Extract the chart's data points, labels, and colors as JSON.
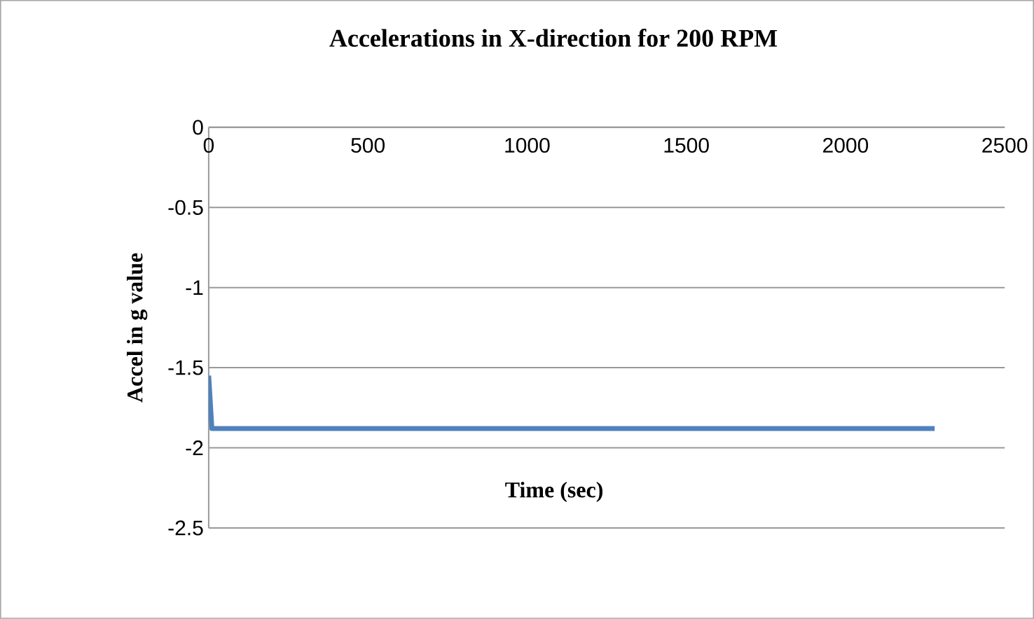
{
  "chart_data": {
    "type": "line",
    "title": "Accelerations in X-direction for 200 RPM",
    "xlabel": "Time (sec)",
    "ylabel": "Accel in g value",
    "series": [
      {
        "color": "#4f81bd",
        "x": [
          0,
          10,
          2280
        ],
        "values": [
          -1.55,
          -1.88,
          -1.88
        ]
      }
    ],
    "xlim": [
      0,
      2500
    ],
    "xticks": [
      0,
      500,
      1000,
      1500,
      2000,
      2500
    ],
    "ylim": [
      -2.5,
      0
    ],
    "yticks": [
      0,
      -0.5,
      -1,
      -1.5,
      -2,
      -2.5
    ],
    "grid": "y"
  }
}
